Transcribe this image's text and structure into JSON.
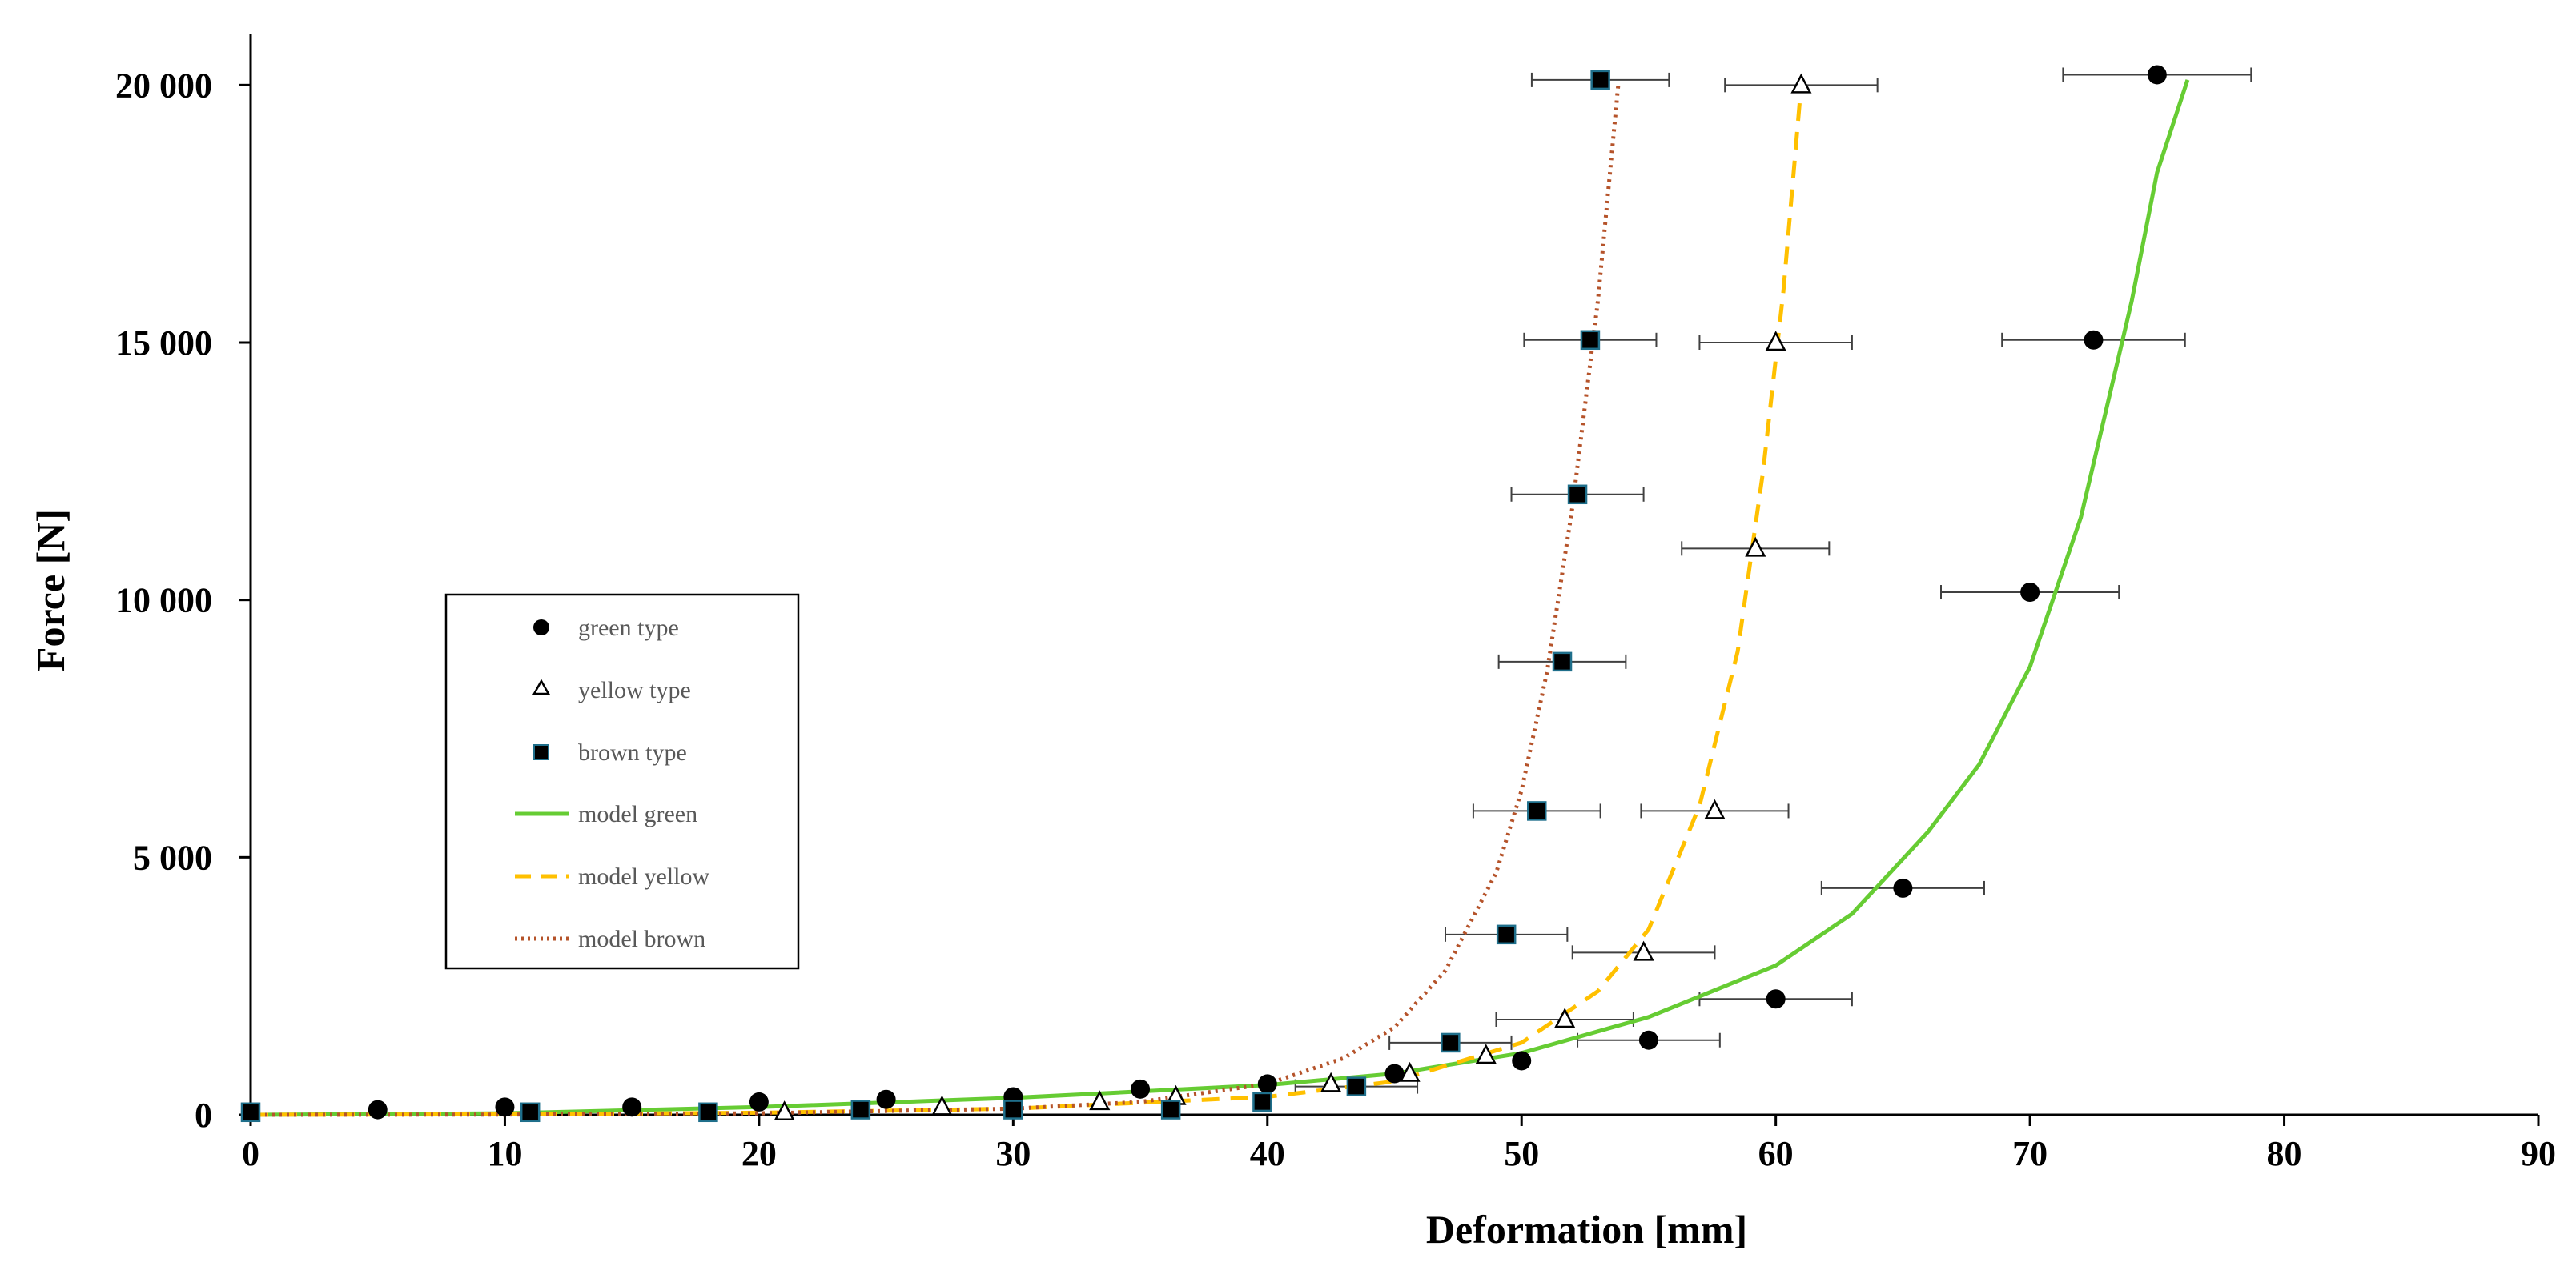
{
  "chart_data": {
    "type": "scatter",
    "title": "",
    "xlabel": "Deformation [mm]",
    "ylabel": "Force [N]",
    "xlim": [
      0,
      90
    ],
    "ylim": [
      0,
      21000
    ],
    "x_ticks": [
      0,
      10,
      20,
      30,
      40,
      50,
      60,
      70,
      80,
      90
    ],
    "x_tick_labels": [
      "0",
      "10",
      "20",
      "30",
      "40",
      "50",
      "60",
      "70",
      "80",
      "90"
    ],
    "y_ticks": [
      0,
      5000,
      10000,
      15000,
      20000
    ],
    "y_tick_labels": [
      "0",
      "5 000",
      "10 000",
      "15 000",
      "20 000"
    ],
    "grid": false,
    "legend_position": "left-middle",
    "colors": {
      "model_green": "#66cc33",
      "model_yellow": "#ffc000",
      "model_brown": "#b5532a",
      "marker": "#000000",
      "brown_marker_edge": "#1f6f8b"
    },
    "series": [
      {
        "name": "green type",
        "kind": "scatter",
        "marker": "circle",
        "x": [
          0,
          5,
          10,
          15,
          20,
          25,
          30,
          35,
          40,
          45,
          50,
          55,
          60,
          65,
          70,
          72.5,
          75
        ],
        "y": [
          50,
          100,
          150,
          150,
          250,
          300,
          350,
          500,
          600,
          800,
          1050,
          1450,
          2250,
          4400,
          10150,
          15050,
          20200
        ],
        "xerr": [
          0,
          0,
          0,
          0,
          0,
          0,
          0,
          0,
          0,
          0,
          0,
          2.8,
          3,
          3.2,
          3.5,
          3.6,
          3.7
        ],
        "xerr_y": [
          0,
          0,
          0,
          0,
          0,
          0,
          0,
          0,
          0,
          0,
          0,
          1450,
          2250,
          4400,
          10150,
          15050,
          20200
        ]
      },
      {
        "name": "yellow type",
        "kind": "scatter",
        "marker": "triangle",
        "x": [
          21,
          27.2,
          33.4,
          36.4,
          42.5,
          45.6,
          48.6,
          51.7,
          54.8,
          57.6,
          59.2,
          60,
          61
        ],
        "y": [
          50,
          150,
          250,
          350,
          600,
          800,
          1150,
          1850,
          3150,
          5900,
          11000,
          15000,
          20000
        ],
        "xerr": [
          0,
          0,
          0,
          0,
          0,
          0,
          0,
          2.7,
          2.8,
          2.9,
          2.9,
          3,
          3
        ],
        "xerr_y": [
          0,
          0,
          0,
          0,
          0,
          0,
          0,
          1850,
          3150,
          5900,
          11000,
          15000,
          20000
        ]
      },
      {
        "name": "brown type",
        "kind": "scatter",
        "marker": "square",
        "x": [
          0,
          11,
          18,
          24,
          30,
          36.2,
          39.8,
          43.5,
          47.2,
          49.4,
          50.6,
          51.6,
          52.2,
          52.7,
          53.1
        ],
        "y": [
          50,
          50,
          50,
          100,
          100,
          100,
          250,
          550,
          1400,
          3500,
          5900,
          8800,
          12050,
          15050,
          20100
        ],
        "xerr": [
          0,
          0,
          0,
          0,
          0,
          0,
          0,
          2.4,
          2.4,
          2.4,
          2.5,
          2.5,
          2.6,
          2.6,
          2.7
        ],
        "xerr_y": [
          0,
          0,
          0,
          0,
          0,
          0,
          0,
          550,
          1400,
          3500,
          5900,
          8800,
          12050,
          15050,
          20100
        ]
      },
      {
        "name": "model green",
        "kind": "line",
        "style": "solid",
        "x": [
          0,
          10,
          20,
          30,
          40,
          45,
          50,
          55,
          60,
          63,
          66,
          68,
          70,
          72,
          74,
          75,
          76.2
        ],
        "y": [
          0,
          30,
          150,
          330,
          580,
          800,
          1200,
          1900,
          2900,
          3900,
          5500,
          6800,
          8700,
          11600,
          15800,
          18300,
          20100
        ]
      },
      {
        "name": "model yellow",
        "kind": "line",
        "style": "dashed",
        "x": [
          0,
          10,
          20,
          30,
          40,
          45,
          50,
          53,
          55,
          57,
          58.5,
          59.5,
          60.3,
          61
        ],
        "y": [
          0,
          10,
          40,
          120,
          350,
          650,
          1400,
          2400,
          3600,
          6000,
          9000,
          12500,
          16000,
          20000
        ]
      },
      {
        "name": "model brown",
        "kind": "line",
        "style": "dotted",
        "x": [
          0,
          10,
          20,
          30,
          35,
          40,
          43,
          45,
          47,
          49,
          50,
          51,
          52,
          53,
          53.8
        ],
        "y": [
          0,
          5,
          30,
          120,
          250,
          600,
          1100,
          1700,
          2800,
          4700,
          6300,
          8600,
          11800,
          15800,
          20000
        ]
      }
    ]
  }
}
